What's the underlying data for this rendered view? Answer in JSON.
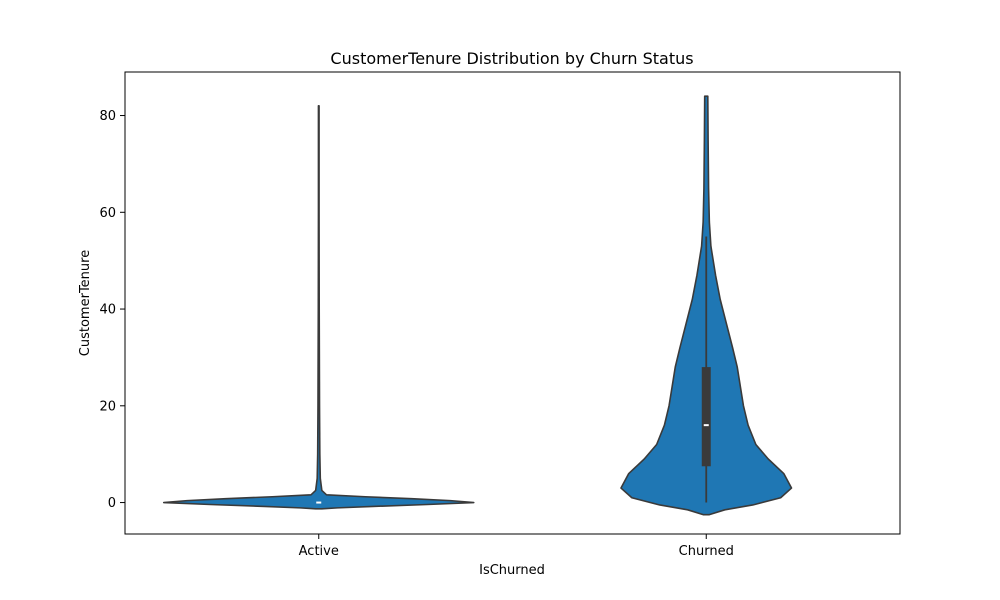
{
  "colors": {
    "violin_fill": "#1f77b4",
    "violin_edge": "#3a3a3a",
    "box_fill": "#3a3a3a",
    "median": "#ffffff"
  },
  "chart_data": {
    "type": "violin",
    "title": "CustomerTenure Distribution by Churn Status",
    "xlabel": "IsChurned",
    "ylabel": "CustomerTenure",
    "categories": [
      "Active",
      "Churned"
    ],
    "ylim": [
      -6.5,
      89
    ],
    "yticks": [
      0,
      20,
      40,
      60,
      80
    ],
    "grid": false,
    "legend": "none",
    "violins": [
      {
        "category": "Active",
        "min": -1,
        "max": 82,
        "q1": 0,
        "median": 0,
        "q3": 0,
        "whisker_low": 0,
        "whisker_high": 0,
        "profile": [
          [
            82,
            0.002
          ],
          [
            60,
            0.002
          ],
          [
            40,
            0.003
          ],
          [
            20,
            0.005
          ],
          [
            10,
            0.007
          ],
          [
            5,
            0.01
          ],
          [
            2.5,
            0.02
          ],
          [
            1.6,
            0.05
          ],
          [
            1.2,
            0.3
          ],
          [
            0.8,
            0.6
          ],
          [
            0.4,
            0.85
          ],
          [
            0,
            1.0
          ],
          [
            -0.4,
            0.7
          ],
          [
            -0.8,
            0.35
          ],
          [
            -1.1,
            0.12
          ],
          [
            -1.3,
            0.02
          ]
        ]
      },
      {
        "category": "Churned",
        "min": -2.5,
        "max": 84,
        "q1": 7.5,
        "median": 16,
        "q3": 28,
        "whisker_low": 0,
        "whisker_high": 55,
        "profile": [
          [
            84,
            0.01
          ],
          [
            75,
            0.012
          ],
          [
            65,
            0.015
          ],
          [
            58,
            0.02
          ],
          [
            53,
            0.03
          ],
          [
            47,
            0.06
          ],
          [
            42,
            0.09
          ],
          [
            37,
            0.13
          ],
          [
            32,
            0.17
          ],
          [
            28,
            0.2
          ],
          [
            24,
            0.22
          ],
          [
            20,
            0.24
          ],
          [
            16,
            0.27
          ],
          [
            12,
            0.32
          ],
          [
            9,
            0.4
          ],
          [
            6,
            0.5
          ],
          [
            3,
            0.55
          ],
          [
            1,
            0.48
          ],
          [
            -0.5,
            0.3
          ],
          [
            -1.5,
            0.12
          ],
          [
            -2.5,
            0.02
          ]
        ]
      }
    ]
  }
}
